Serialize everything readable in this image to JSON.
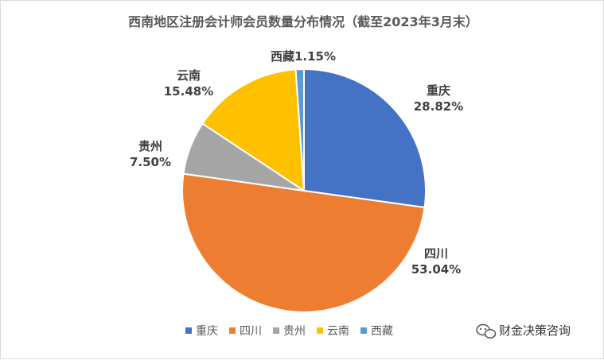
{
  "chart_data": {
    "type": "pie",
    "title": "西南地区注册会计师会员数量分布情况（截至2023年3月末）",
    "categories": [
      "重庆",
      "四川",
      "贵州",
      "云南",
      "西藏"
    ],
    "values": [
      28.82,
      53.04,
      7.5,
      15.48,
      1.15
    ],
    "value_labels": [
      "28.82%",
      "53.04%",
      "7.50%",
      "15.48%",
      "1.15%"
    ],
    "colors": [
      "#4472C4",
      "#ED7D31",
      "#A5A5A5",
      "#FFC000",
      "#5B9BD5"
    ],
    "legend_position": "bottom"
  },
  "watermark": {
    "text": "财金决策咨询",
    "icon": "wechat-icon"
  }
}
